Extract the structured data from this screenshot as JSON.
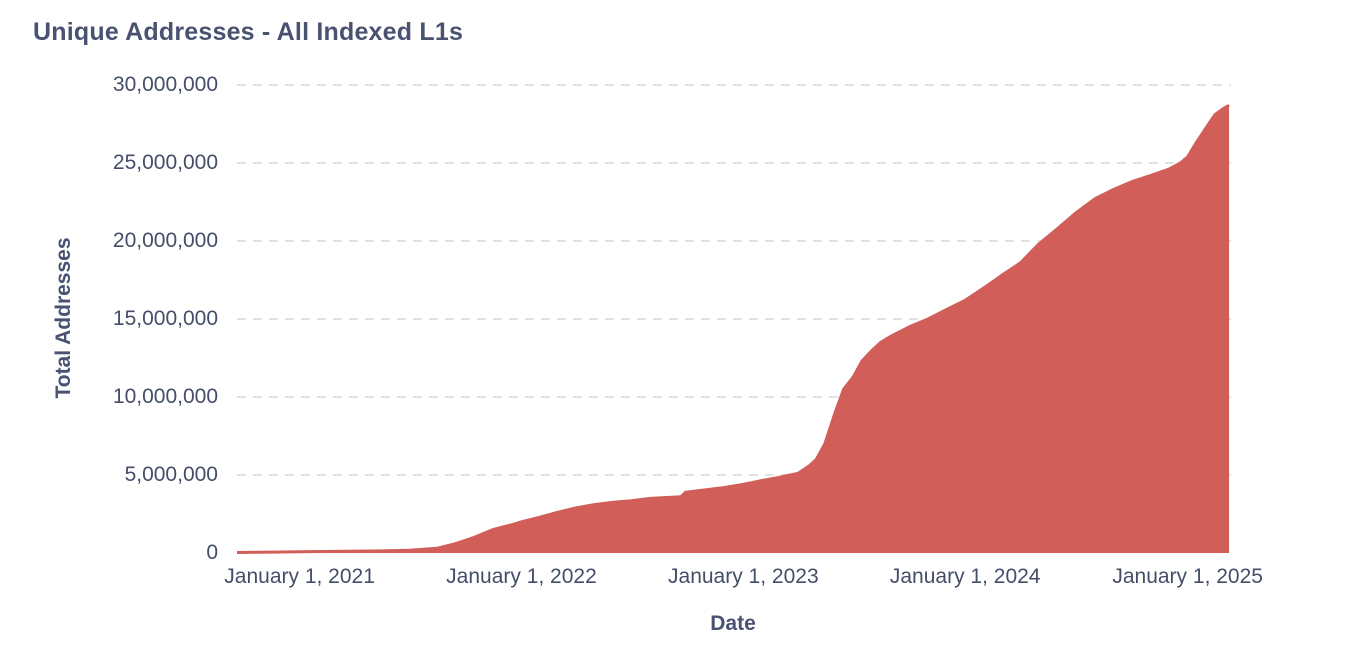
{
  "chart": {
    "title": "Unique Addresses - All Indexed L1s",
    "y_axis": {
      "label": "Total Addresses",
      "ticks": [
        {
          "value": 0,
          "label": "0"
        },
        {
          "value": 5000000,
          "label": "5,000,000"
        },
        {
          "value": 10000000,
          "label": "10,000,000"
        },
        {
          "value": 15000000,
          "label": "15,000,000"
        },
        {
          "value": 20000000,
          "label": "20,000,000"
        },
        {
          "value": 25000000,
          "label": "25,000,000"
        },
        {
          "value": 30000000,
          "label": "30,000,000"
        }
      ]
    },
    "x_axis": {
      "label": "Date",
      "ticks": [
        {
          "date": "2021-01-01",
          "label": "January 1, 2021"
        },
        {
          "date": "2022-01-01",
          "label": "January 1, 2022"
        },
        {
          "date": "2023-01-01",
          "label": "January 1, 2023"
        },
        {
          "date": "2024-01-01",
          "label": "January 1, 2024"
        },
        {
          "date": "2025-01-01",
          "label": "January 1, 2025"
        }
      ]
    },
    "colors": {
      "area_fill": "#d15e59",
      "gridline": "#e2e2e2",
      "text": "#454e68",
      "title_text": "#4a5272"
    }
  },
  "chart_data": {
    "type": "area",
    "title": "Unique Addresses - All Indexed L1s",
    "xlabel": "Date",
    "ylabel": "Total Addresses",
    "x_domain": [
      "2020-09-20",
      "2025-03-10"
    ],
    "ylim": [
      0,
      30000000
    ],
    "grid": "horizontal-dashed",
    "legend": "none",
    "area_color": "#d15e59",
    "series": [
      {
        "name": "Unique Addresses - All Indexed L1s",
        "points": [
          [
            "2020-09-20",
            30000
          ],
          [
            "2020-11-01",
            50000
          ],
          [
            "2021-01-01",
            80000
          ],
          [
            "2021-03-01",
            100000
          ],
          [
            "2021-05-01",
            130000
          ],
          [
            "2021-07-01",
            170000
          ],
          [
            "2021-08-15",
            300000
          ],
          [
            "2021-09-15",
            600000
          ],
          [
            "2021-10-15",
            1000000
          ],
          [
            "2021-11-15",
            1500000
          ],
          [
            "2021-12-15",
            1800000
          ],
          [
            "2022-01-01",
            2000000
          ],
          [
            "2022-02-01",
            2300000
          ],
          [
            "2022-03-01",
            2600000
          ],
          [
            "2022-04-01",
            2900000
          ],
          [
            "2022-05-01",
            3100000
          ],
          [
            "2022-06-01",
            3250000
          ],
          [
            "2022-07-01",
            3350000
          ],
          [
            "2022-08-01",
            3500000
          ],
          [
            "2022-09-20",
            3600000
          ],
          [
            "2022-09-28",
            3900000
          ],
          [
            "2022-11-01",
            4050000
          ],
          [
            "2022-12-01",
            4200000
          ],
          [
            "2023-01-01",
            4400000
          ],
          [
            "2023-02-01",
            4650000
          ],
          [
            "2023-03-01",
            4850000
          ],
          [
            "2023-04-01",
            5100000
          ],
          [
            "2023-04-20",
            5600000
          ],
          [
            "2023-05-01",
            6000000
          ],
          [
            "2023-05-15",
            7000000
          ],
          [
            "2023-06-01",
            9000000
          ],
          [
            "2023-06-15",
            10500000
          ],
          [
            "2023-07-01",
            11300000
          ],
          [
            "2023-07-15",
            12300000
          ],
          [
            "2023-08-01",
            13000000
          ],
          [
            "2023-08-15",
            13500000
          ],
          [
            "2023-09-01",
            13900000
          ],
          [
            "2023-10-01",
            14500000
          ],
          [
            "2023-11-01",
            15000000
          ],
          [
            "2023-12-01",
            15600000
          ],
          [
            "2024-01-01",
            16200000
          ],
          [
            "2024-02-01",
            17000000
          ],
          [
            "2024-03-01",
            17800000
          ],
          [
            "2024-04-01",
            18600000
          ],
          [
            "2024-05-01",
            19800000
          ],
          [
            "2024-06-01",
            20800000
          ],
          [
            "2024-07-01",
            21800000
          ],
          [
            "2024-08-01",
            22700000
          ],
          [
            "2024-09-01",
            23300000
          ],
          [
            "2024-10-01",
            23800000
          ],
          [
            "2024-11-01",
            24200000
          ],
          [
            "2024-12-01",
            24600000
          ],
          [
            "2024-12-20",
            25000000
          ],
          [
            "2025-01-01",
            25400000
          ],
          [
            "2025-01-15",
            26300000
          ],
          [
            "2025-02-01",
            27300000
          ],
          [
            "2025-02-15",
            28100000
          ],
          [
            "2025-03-01",
            28500000
          ],
          [
            "2025-03-10",
            28700000
          ]
        ]
      }
    ]
  }
}
